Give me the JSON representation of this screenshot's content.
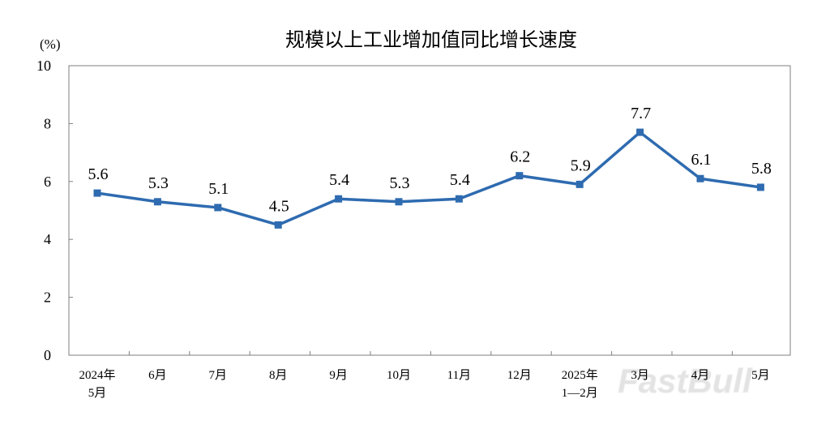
{
  "watermark": "FastBull",
  "chart_data": {
    "type": "line",
    "title": "规模以上工业增加值同比增长速度",
    "unit": "(%)",
    "ylim": [
      0,
      10
    ],
    "yticks": [
      0,
      2,
      4,
      6,
      8,
      10
    ],
    "categories": [
      [
        "2024年",
        "5月"
      ],
      [
        "6月"
      ],
      [
        "7月"
      ],
      [
        "8月"
      ],
      [
        "9月"
      ],
      [
        "10月"
      ],
      [
        "11月"
      ],
      [
        "12月"
      ],
      [
        "2025年",
        "1—2月"
      ],
      [
        "3月"
      ],
      [
        "4月"
      ],
      [
        "5月"
      ]
    ],
    "series": [
      {
        "values": [
          5.6,
          5.3,
          5.1,
          4.5,
          5.4,
          5.3,
          5.4,
          6.2,
          5.9,
          7.7,
          6.1,
          5.8
        ],
        "labels": [
          "5.6",
          "5.3",
          "5.1",
          "4.5",
          "5.4",
          "5.3",
          "5.4",
          "6.2",
          "5.9",
          "7.7",
          "6.1",
          "5.8"
        ],
        "color": "#2e6bb0"
      }
    ],
    "grid": false,
    "legend": "none"
  }
}
